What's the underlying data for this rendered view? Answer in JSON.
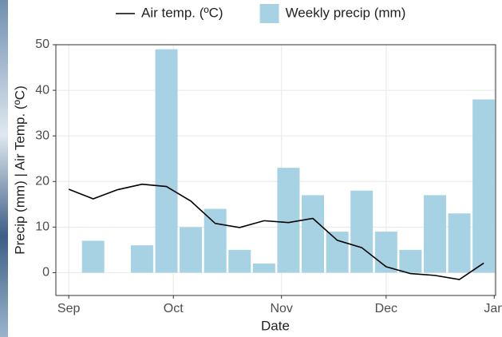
{
  "chart_data": {
    "type": "combo",
    "xlabel": "Date",
    "ylabel": "Precip (mm)  |  Air Temp. (ºC)",
    "xlim": [
      -3.7,
      122.4
    ],
    "xticks": [
      {
        "value": 0,
        "label": "Sep"
      },
      {
        "value": 30,
        "label": "Oct"
      },
      {
        "value": 61,
        "label": "Nov"
      },
      {
        "value": 91,
        "label": "Dec"
      },
      {
        "value": 122,
        "label": "Jan"
      }
    ],
    "ylim": [
      -5,
      50
    ],
    "yticks": [
      0,
      10,
      20,
      30,
      40,
      50
    ],
    "grid": true,
    "legend": "top",
    "series": [
      {
        "name": "Air temp. (ºC)",
        "type": "line",
        "color": "#000000",
        "x": [
          0,
          7,
          14,
          21,
          28,
          35,
          42,
          49,
          56,
          63,
          70,
          77,
          84,
          91,
          98,
          105,
          112,
          119
        ],
        "values": [
          18.3,
          16.2,
          18.2,
          19.4,
          18.9,
          15.7,
          10.8,
          9.9,
          11.4,
          11.0,
          11.9,
          7.1,
          5.5,
          1.3,
          -0.2,
          -0.6,
          -1.5,
          2.1
        ]
      },
      {
        "name": "Weekly precip (mm)",
        "type": "bar",
        "color": "#a6d2e3",
        "x": [
          7,
          21,
          28,
          35,
          42,
          49,
          56,
          63,
          70,
          77,
          84,
          91,
          98,
          105,
          112,
          119
        ],
        "values": [
          7,
          6,
          49,
          10,
          14,
          5,
          2,
          23,
          17,
          9,
          18,
          9,
          5,
          17,
          13,
          38
        ]
      }
    ]
  }
}
